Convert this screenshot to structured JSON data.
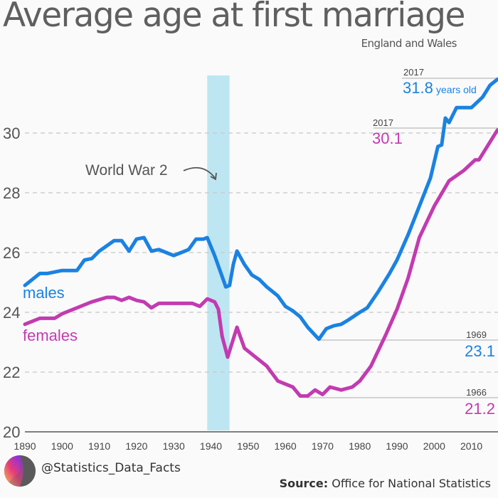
{
  "chart_data": {
    "type": "line",
    "title": "Average age at first marriage",
    "subtitle": "England and Wales",
    "xlim": [
      1890,
      2018
    ],
    "ylim": [
      20,
      32
    ],
    "x_ticks": [
      "1890",
      "1900",
      "1910",
      "1920",
      "1930",
      "1940",
      "1950",
      "1960",
      "1970",
      "1980",
      "1990",
      "2000",
      "2010"
    ],
    "y_ticks": [
      "20",
      "22",
      "24",
      "26",
      "28",
      "30"
    ],
    "grid": "horizontal dashed",
    "series": [
      {
        "name": "males",
        "color": "#1a82e2",
        "x": [
          1890,
          1894,
          1896,
          1900,
          1904,
          1906,
          1908,
          1910,
          1914,
          1916,
          1918,
          1920,
          1922,
          1924,
          1926,
          1928,
          1930,
          1932,
          1934,
          1936,
          1938,
          1939,
          1941,
          1943,
          1944,
          1945,
          1946,
          1947,
          1949,
          1951,
          1953,
          1955,
          1958,
          1960,
          1962,
          1964,
          1966,
          1969,
          1971,
          1973,
          1975,
          1977,
          1980,
          1982,
          1985,
          1988,
          1990,
          1993,
          1996,
          1999,
          2001,
          2002,
          2003,
          2004,
          2006,
          2010,
          2013,
          2015,
          2017
        ],
        "y": [
          24.9,
          25.3,
          25.3,
          25.4,
          25.4,
          25.75,
          25.8,
          26.05,
          26.4,
          26.4,
          26.05,
          26.45,
          26.5,
          26.05,
          26.1,
          26.0,
          25.9,
          26.0,
          26.1,
          26.45,
          26.45,
          26.5,
          25.9,
          25.2,
          24.85,
          24.9,
          25.6,
          26.05,
          25.6,
          25.25,
          25.1,
          24.85,
          24.55,
          24.2,
          24.05,
          23.85,
          23.5,
          23.1,
          23.45,
          23.55,
          23.6,
          23.75,
          24.0,
          24.15,
          24.7,
          25.3,
          25.75,
          26.6,
          27.55,
          28.5,
          29.55,
          29.6,
          30.5,
          30.35,
          30.85,
          30.85,
          31.2,
          31.6,
          31.8
        ]
      },
      {
        "name": "females",
        "color": "#c23bb0",
        "x": [
          1890,
          1894,
          1898,
          1900,
          1904,
          1908,
          1912,
          1914,
          1916,
          1918,
          1920,
          1922,
          1924,
          1926,
          1930,
          1935,
          1937,
          1939,
          1941,
          1942,
          1943,
          1944.5,
          1947,
          1949,
          1955,
          1958,
          1962,
          1964,
          1966,
          1968,
          1970,
          1972,
          1975,
          1978,
          1980,
          1983,
          1987,
          1990,
          1993,
          1996,
          2000,
          2004,
          2008,
          2011,
          2012,
          2017
        ],
        "y": [
          23.6,
          23.8,
          23.8,
          23.95,
          24.15,
          24.35,
          24.5,
          24.5,
          24.4,
          24.5,
          24.4,
          24.35,
          24.15,
          24.3,
          24.3,
          24.3,
          24.2,
          24.45,
          24.35,
          24.1,
          23.2,
          22.5,
          23.5,
          22.8,
          22.2,
          21.7,
          21.5,
          21.2,
          21.2,
          21.4,
          21.25,
          21.5,
          21.4,
          21.5,
          21.7,
          22.2,
          23.25,
          24.1,
          25.15,
          26.5,
          27.55,
          28.4,
          28.75,
          29.1,
          29.1,
          30.1
        ]
      }
    ],
    "band": {
      "label": "World War 2",
      "x": [
        1939,
        1945
      ],
      "color": "#bde6f2"
    },
    "annotations": [
      {
        "year": "2017",
        "value": "31.8",
        "unit": "years old",
        "series": "males"
      },
      {
        "year": "2017",
        "value": "30.1",
        "series": "females"
      },
      {
        "year": "1969",
        "value": "23.1",
        "series": "males"
      },
      {
        "year": "1966",
        "value": "21.2",
        "series": "females"
      }
    ]
  },
  "footer": {
    "handle": "@Statistics_Data_Facts",
    "source_label": "Source:",
    "source_text": "Office for National Statistics"
  }
}
